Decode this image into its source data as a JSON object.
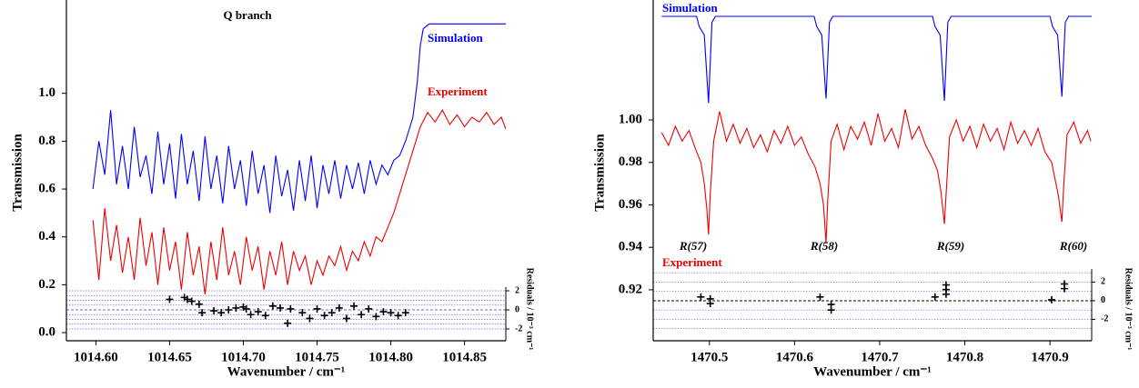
{
  "chart_data": [
    {
      "type": "line",
      "title": "Q branch",
      "x_label": "Wavenumber / cm⁻¹",
      "y_label": "Transmission",
      "y2_label": "Residuals / 10⁻³ cm⁻¹",
      "xlim": [
        1014.58,
        1014.878
      ],
      "ylim": [
        -0.034,
        1.39
      ],
      "y2lim": [
        -3.24,
        32.5
      ],
      "xticks": [
        {
          "value": 1014.6,
          "label": "1014.60"
        },
        {
          "value": 1014.65,
          "label": "1014.65"
        },
        {
          "value": 1014.7,
          "label": "1014.70"
        },
        {
          "value": 1014.75,
          "label": "1014.75"
        },
        {
          "value": 1014.8,
          "label": "1014.80"
        },
        {
          "value": 1014.85,
          "label": "1014.85"
        }
      ],
      "yticks": [
        {
          "value": 0,
          "label": "0.0"
        },
        0.2,
        0.4,
        0.6,
        0.8,
        {
          "value": 1,
          "label": "1.0"
        }
      ],
      "y2ticks": [
        -2,
        0,
        2
      ],
      "y2grid": [
        -2,
        -1.5,
        -1,
        -0.5,
        0,
        0.5,
        1,
        1.5,
        2
      ],
      "y2grid_color": "#6a6ae0",
      "y2zero_color": "#6a6ae0",
      "series": [
        {
          "name": "Simulation",
          "color": "#0000ff",
          "x": [
            1014.598,
            1014.602,
            1014.606,
            1014.61,
            1014.614,
            1014.618,
            1014.622,
            1014.626,
            1014.63,
            1014.634,
            1014.638,
            1014.642,
            1014.646,
            1014.65,
            1014.654,
            1014.658,
            1014.662,
            1014.666,
            1014.67,
            1014.674,
            1014.678,
            1014.682,
            1014.686,
            1014.69,
            1014.694,
            1014.698,
            1014.702,
            1014.706,
            1014.71,
            1014.714,
            1014.718,
            1014.722,
            1014.726,
            1014.73,
            1014.734,
            1014.738,
            1014.742,
            1014.746,
            1014.75,
            1014.754,
            1014.758,
            1014.762,
            1014.766,
            1014.77,
            1014.774,
            1014.778,
            1014.782,
            1014.786,
            1014.79,
            1014.794,
            1014.798,
            1014.802,
            1014.806,
            1014.81,
            1014.815,
            1014.818,
            1014.82,
            1014.822,
            1014.826,
            1014.85,
            1014.878
          ],
          "values": [
            0.6,
            0.8,
            0.66,
            0.93,
            0.62,
            0.78,
            0.6,
            0.86,
            0.65,
            0.74,
            0.58,
            0.84,
            0.62,
            0.79,
            0.56,
            0.83,
            0.62,
            0.76,
            0.55,
            0.82,
            0.6,
            0.74,
            0.54,
            0.78,
            0.6,
            0.72,
            0.53,
            0.76,
            0.58,
            0.7,
            0.5,
            0.74,
            0.57,
            0.68,
            0.51,
            0.72,
            0.55,
            0.74,
            0.52,
            0.7,
            0.58,
            0.72,
            0.56,
            0.7,
            0.6,
            0.71,
            0.58,
            0.72,
            0.62,
            0.7,
            0.66,
            0.72,
            0.74,
            0.8,
            0.9,
            1.05,
            1.2,
            1.27,
            1.29,
            1.29,
            1.29
          ]
        },
        {
          "name": "Experiment",
          "color": "#ee0000",
          "x": [
            1014.598,
            1014.602,
            1014.606,
            1014.61,
            1014.614,
            1014.618,
            1014.622,
            1014.626,
            1014.63,
            1014.634,
            1014.638,
            1014.642,
            1014.646,
            1014.65,
            1014.654,
            1014.658,
            1014.662,
            1014.666,
            1014.67,
            1014.674,
            1014.678,
            1014.682,
            1014.686,
            1014.69,
            1014.694,
            1014.698,
            1014.702,
            1014.706,
            1014.71,
            1014.714,
            1014.718,
            1014.722,
            1014.726,
            1014.73,
            1014.734,
            1014.738,
            1014.742,
            1014.746,
            1014.75,
            1014.754,
            1014.758,
            1014.762,
            1014.766,
            1014.77,
            1014.774,
            1014.778,
            1014.782,
            1014.786,
            1014.79,
            1014.794,
            1014.798,
            1014.802,
            1014.806,
            1014.81,
            1014.815,
            1014.82,
            1014.825,
            1014.83,
            1014.835,
            1014.84,
            1014.845,
            1014.85,
            1014.855,
            1014.86,
            1014.865,
            1014.87,
            1014.875,
            1014.878
          ],
          "values": [
            0.47,
            0.22,
            0.52,
            0.3,
            0.45,
            0.25,
            0.4,
            0.22,
            0.48,
            0.28,
            0.42,
            0.2,
            0.44,
            0.26,
            0.38,
            0.18,
            0.42,
            0.24,
            0.36,
            0.16,
            0.38,
            0.22,
            0.44,
            0.24,
            0.34,
            0.2,
            0.4,
            0.26,
            0.36,
            0.18,
            0.34,
            0.24,
            0.38,
            0.2,
            0.34,
            0.26,
            0.32,
            0.2,
            0.3,
            0.24,
            0.32,
            0.28,
            0.36,
            0.26,
            0.34,
            0.3,
            0.38,
            0.32,
            0.4,
            0.38,
            0.44,
            0.5,
            0.58,
            0.66,
            0.76,
            0.86,
            0.92,
            0.88,
            0.93,
            0.87,
            0.91,
            0.86,
            0.9,
            0.88,
            0.92,
            0.87,
            0.9,
            0.85
          ]
        },
        {
          "style": "markers",
          "axis": "y2",
          "color": "#000000",
          "x": [
            1014.65,
            1014.66,
            1014.662,
            1014.665,
            1014.67,
            1014.672,
            1014.68,
            1014.685,
            1014.69,
            1014.695,
            1014.7,
            1014.702,
            1014.705,
            1014.71,
            1014.715,
            1014.72,
            1014.725,
            1014.73,
            1014.732,
            1014.74,
            1014.745,
            1014.75,
            1014.755,
            1014.76,
            1014.765,
            1014.77,
            1014.775,
            1014.78,
            1014.785,
            1014.79,
            1014.795,
            1014.8,
            1014.805,
            1014.81
          ],
          "values": [
            1.1,
            1.3,
            1.1,
            0.9,
            0.6,
            -0.3,
            -0.1,
            -0.3,
            0,
            0.2,
            0.3,
            0.1,
            -0.5,
            -0.2,
            -0.6,
            0.4,
            0.2,
            -1.4,
            0.1,
            -0.3,
            -0.9,
            0.1,
            -0.6,
            -0.3,
            0.2,
            -0.9,
            0.4,
            -0.5,
            0.1,
            -0.7,
            -0.2,
            -0.3,
            -0.6,
            -0.3
          ]
        }
      ]
    },
    {
      "type": "line",
      "x_label": "Wavenumber / cm⁻¹",
      "y_label": "Transmission",
      "y2_label": "Residuals / 10⁻³ cm⁻¹",
      "annotations": [
        "R(57)",
        "R(58)",
        "R(59)",
        "R(60)"
      ],
      "xlim": [
        1470.434,
        1470.949
      ],
      "ylim": [
        0.896,
        1.0565
      ],
      "y2lim": [
        -4.3,
        32.3
      ],
      "xticks": [
        1470.5,
        1470.6,
        1470.7,
        1470.8,
        1470.9
      ],
      "yticks": [
        0.92,
        0.94,
        0.96,
        0.98,
        {
          "value": 1,
          "label": "1.00"
        }
      ],
      "y2ticks": [
        -2,
        0,
        2
      ],
      "y2grid": [
        -3,
        -2,
        -1,
        0,
        1,
        2,
        3
      ],
      "y2grid_color": "#6a6ae0",
      "y2zero_color": "#000000",
      "series": [
        {
          "name": "Simulation",
          "color": "#0000ff",
          "x": [
            1470.444,
            1470.485,
            1470.488,
            1470.494,
            1470.499,
            1470.503,
            1470.507,
            1470.623,
            1470.626,
            1470.632,
            1470.637,
            1470.641,
            1470.645,
            1470.762,
            1470.765,
            1470.771,
            1470.776,
            1470.78,
            1470.784,
            1470.9,
            1470.903,
            1470.909,
            1470.914,
            1470.918,
            1470.922,
            1470.949
          ],
          "values": [
            1.0488,
            1.0488,
            1.044,
            1.04,
            1.008,
            1.046,
            1.0488,
            1.0488,
            1.044,
            1.04,
            1.01,
            1.046,
            1.0488,
            1.0488,
            1.044,
            1.04,
            1.009,
            1.046,
            1.0488,
            1.0488,
            1.044,
            1.04,
            1.011,
            1.046,
            1.0488,
            1.0488
          ]
        },
        {
          "name": "Experiment",
          "color": "#ee0000",
          "x": [
            1470.444,
            1470.452,
            1470.46,
            1470.468,
            1470.476,
            1470.484,
            1470.49,
            1470.494,
            1470.497,
            1470.499,
            1470.501,
            1470.505,
            1470.512,
            1470.52,
            1470.528,
            1470.536,
            1470.544,
            1470.552,
            1470.56,
            1470.568,
            1470.576,
            1470.584,
            1470.592,
            1470.6,
            1470.608,
            1470.616,
            1470.624,
            1470.63,
            1470.634,
            1470.637,
            1470.639,
            1470.643,
            1470.65,
            1470.658,
            1470.666,
            1470.674,
            1470.682,
            1470.69,
            1470.698,
            1470.706,
            1470.714,
            1470.722,
            1470.73,
            1470.738,
            1470.746,
            1470.754,
            1470.762,
            1470.768,
            1470.772,
            1470.776,
            1470.778,
            1470.782,
            1470.79,
            1470.798,
            1470.806,
            1470.814,
            1470.822,
            1470.83,
            1470.838,
            1470.846,
            1470.854,
            1470.862,
            1470.87,
            1470.878,
            1470.886,
            1470.894,
            1470.902,
            1470.906,
            1470.91,
            1470.914,
            1470.916,
            1470.92,
            1470.928,
            1470.936,
            1470.944,
            1470.948
          ],
          "values": [
            0.994,
            0.988,
            0.997,
            0.99,
            0.995,
            0.986,
            0.98,
            0.97,
            0.958,
            0.946,
            0.965,
            0.99,
            1.004,
            0.99,
            0.998,
            0.989,
            0.996,
            0.987,
            0.993,
            0.985,
            0.995,
            0.989,
            0.997,
            0.988,
            0.992,
            0.984,
            0.978,
            0.97,
            0.96,
            0.942,
            0.962,
            0.99,
            0.998,
            0.986,
            0.997,
            0.991,
            0.999,
            0.988,
            1.003,
            0.99,
            0.996,
            0.987,
            1.005,
            0.991,
            0.997,
            0.988,
            0.982,
            0.976,
            0.966,
            0.951,
            0.965,
            0.992,
            1,
            0.99,
            0.997,
            0.987,
            0.998,
            0.99,
            0.996,
            0.986,
            0.999,
            0.989,
            0.995,
            0.988,
            0.996,
            0.985,
            0.98,
            0.972,
            0.964,
            0.952,
            0.968,
            0.993,
            0.999,
            0.989,
            0.995,
            0.99
          ]
        },
        {
          "style": "markers",
          "axis": "y2",
          "color": "#000000",
          "x": [
            1470.49,
            1470.501,
            1470.501,
            1470.63,
            1470.643,
            1470.643,
            1470.765,
            1470.778,
            1470.778,
            1470.778,
            1470.902,
            1470.917,
            1470.917
          ],
          "values": [
            0.4,
            0.2,
            -0.3,
            0.4,
            -0.4,
            -1,
            0.4,
            1.7,
            1.2,
            0.7,
            0.1,
            1.8,
            1.3
          ]
        }
      ]
    }
  ]
}
